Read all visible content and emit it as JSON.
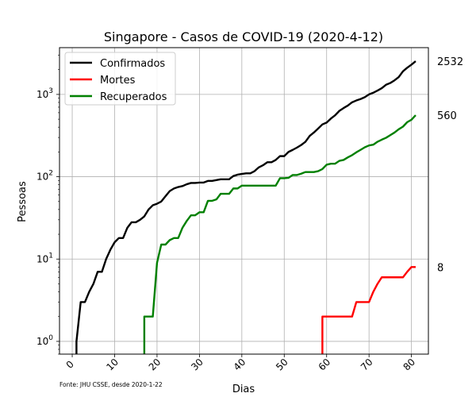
{
  "chart_data": {
    "type": "line",
    "title": "Singapore - Casos de COVID-19 (2020-4-12)",
    "xlabel": "Dias",
    "ylabel": "Pessoas",
    "yscale": "log",
    "xlim": [
      -3,
      84
    ],
    "ylim": [
      0.7,
      3700
    ],
    "grid": true,
    "legend_position": "top-left",
    "x_ticks": [
      0,
      10,
      20,
      30,
      40,
      50,
      60,
      70,
      80
    ],
    "y_ticks": [
      1,
      10,
      100,
      1000
    ],
    "y_tick_labels": [
      {
        "base": "10",
        "exp": "0"
      },
      {
        "base": "10",
        "exp": "1"
      },
      {
        "base": "10",
        "exp": "2"
      },
      {
        "base": "10",
        "exp": "3"
      }
    ],
    "footnote": "Fonte: JHU CSSE, desde 2020-1-22",
    "series": [
      {
        "name": "Confirmados",
        "color": "#000000",
        "end_label": "2532",
        "points": [
          [
            1,
            1
          ],
          [
            2,
            3
          ],
          [
            3,
            3
          ],
          [
            4,
            4
          ],
          [
            5,
            5
          ],
          [
            6,
            7
          ],
          [
            7,
            7
          ],
          [
            8,
            10
          ],
          [
            9,
            13
          ],
          [
            10,
            16
          ],
          [
            11,
            18
          ],
          [
            12,
            18
          ],
          [
            13,
            24
          ],
          [
            14,
            28
          ],
          [
            15,
            28
          ],
          [
            16,
            30
          ],
          [
            17,
            33
          ],
          [
            18,
            40
          ],
          [
            19,
            45
          ],
          [
            20,
            47
          ],
          [
            21,
            50
          ],
          [
            22,
            58
          ],
          [
            23,
            67
          ],
          [
            24,
            72
          ],
          [
            25,
            75
          ],
          [
            26,
            77
          ],
          [
            27,
            81
          ],
          [
            28,
            84
          ],
          [
            29,
            84
          ],
          [
            30,
            85
          ],
          [
            31,
            85
          ],
          [
            32,
            89
          ],
          [
            33,
            89
          ],
          [
            34,
            91
          ],
          [
            35,
            93
          ],
          [
            36,
            93
          ],
          [
            37,
            93
          ],
          [
            38,
            102
          ],
          [
            39,
            106
          ],
          [
            40,
            108
          ],
          [
            41,
            110
          ],
          [
            42,
            110
          ],
          [
            43,
            117
          ],
          [
            44,
            130
          ],
          [
            45,
            138
          ],
          [
            46,
            150
          ],
          [
            47,
            150
          ],
          [
            48,
            160
          ],
          [
            49,
            178
          ],
          [
            50,
            178
          ],
          [
            51,
            200
          ],
          [
            52,
            212
          ],
          [
            53,
            226
          ],
          [
            54,
            243
          ],
          [
            55,
            266
          ],
          [
            56,
            313
          ],
          [
            57,
            345
          ],
          [
            58,
            385
          ],
          [
            59,
            432
          ],
          [
            60,
            455
          ],
          [
            61,
            509
          ],
          [
            62,
            558
          ],
          [
            63,
            631
          ],
          [
            64,
            683
          ],
          [
            65,
            732
          ],
          [
            66,
            802
          ],
          [
            67,
            844
          ],
          [
            68,
            879
          ],
          [
            69,
            926
          ],
          [
            70,
            1000
          ],
          [
            71,
            1049
          ],
          [
            72,
            1114
          ],
          [
            73,
            1189
          ],
          [
            74,
            1309
          ],
          [
            75,
            1375
          ],
          [
            76,
            1481
          ],
          [
            77,
            1623
          ],
          [
            78,
            1910
          ],
          [
            79,
            2108
          ],
          [
            80,
            2299
          ],
          [
            81,
            2532
          ]
        ]
      },
      {
        "name": "Mortes",
        "color": "#ff0000",
        "end_label": "8",
        "points": [
          [
            59,
            2
          ],
          [
            60,
            2
          ],
          [
            61,
            2
          ],
          [
            62,
            2
          ],
          [
            63,
            2
          ],
          [
            64,
            2
          ],
          [
            65,
            2
          ],
          [
            66,
            2
          ],
          [
            67,
            3
          ],
          [
            68,
            3
          ],
          [
            69,
            3
          ],
          [
            70,
            3
          ],
          [
            71,
            4
          ],
          [
            72,
            5
          ],
          [
            73,
            6
          ],
          [
            74,
            6
          ],
          [
            75,
            6
          ],
          [
            76,
            6
          ],
          [
            77,
            6
          ],
          [
            78,
            6
          ],
          [
            79,
            7
          ],
          [
            80,
            8
          ],
          [
            81,
            8
          ]
        ]
      },
      {
        "name": "Recuperados",
        "color": "#008000",
        "end_label": "560",
        "points": [
          [
            17,
            2
          ],
          [
            18,
            2
          ],
          [
            19,
            2
          ],
          [
            20,
            9
          ],
          [
            21,
            15
          ],
          [
            22,
            15
          ],
          [
            23,
            17
          ],
          [
            24,
            18
          ],
          [
            25,
            18
          ],
          [
            26,
            24
          ],
          [
            27,
            29
          ],
          [
            28,
            34
          ],
          [
            29,
            34
          ],
          [
            30,
            37
          ],
          [
            31,
            37
          ],
          [
            32,
            51
          ],
          [
            33,
            51
          ],
          [
            34,
            53
          ],
          [
            35,
            62
          ],
          [
            36,
            62
          ],
          [
            37,
            62
          ],
          [
            38,
            72
          ],
          [
            39,
            72
          ],
          [
            40,
            78
          ],
          [
            41,
            78
          ],
          [
            42,
            78
          ],
          [
            43,
            78
          ],
          [
            44,
            78
          ],
          [
            45,
            78
          ],
          [
            46,
            78
          ],
          [
            47,
            78
          ],
          [
            48,
            78
          ],
          [
            49,
            96
          ],
          [
            50,
            96
          ],
          [
            51,
            97
          ],
          [
            52,
            105
          ],
          [
            53,
            105
          ],
          [
            54,
            109
          ],
          [
            55,
            114
          ],
          [
            56,
            114
          ],
          [
            57,
            114
          ],
          [
            58,
            117
          ],
          [
            59,
            124
          ],
          [
            60,
            140
          ],
          [
            61,
            144
          ],
          [
            62,
            144
          ],
          [
            63,
            156
          ],
          [
            64,
            160
          ],
          [
            65,
            172
          ],
          [
            66,
            183
          ],
          [
            67,
            198
          ],
          [
            68,
            212
          ],
          [
            69,
            228
          ],
          [
            70,
            240
          ],
          [
            71,
            245
          ],
          [
            72,
            266
          ],
          [
            73,
            282
          ],
          [
            74,
            297
          ],
          [
            75,
            320
          ],
          [
            76,
            344
          ],
          [
            77,
            377
          ],
          [
            78,
            406
          ],
          [
            79,
            460
          ],
          [
            80,
            492
          ],
          [
            81,
            560
          ]
        ]
      }
    ]
  }
}
